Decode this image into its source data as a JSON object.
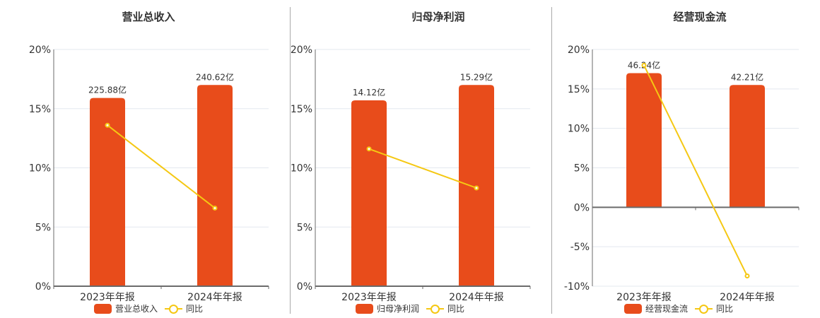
{
  "colors": {
    "bar": "#e84c1b",
    "line": "#f5c813",
    "grid": "#e3e8ef",
    "axis": "#6b6b6b",
    "text": "#333333"
  },
  "chart_data": [
    {
      "type": "bar+line",
      "title": "营业总收入",
      "categories": [
        "2023年年报",
        "2024年年报"
      ],
      "series": [
        {
          "name": "营业总收入",
          "kind": "bar",
          "labels": [
            "225.88亿",
            "240.62亿"
          ],
          "values": [
            225.88,
            240.62
          ],
          "unit": "亿",
          "bar_top_pct": [
            15.9,
            17.0
          ]
        },
        {
          "name": "同比",
          "kind": "line",
          "values": [
            13.6,
            6.6
          ],
          "unit": "%"
        }
      ],
      "yaxis": {
        "ticks": [
          "20%",
          "15%",
          "10%",
          "5%",
          "0%"
        ],
        "ylim": [
          0,
          20
        ]
      },
      "legend": {
        "position": "bottom",
        "items": [
          "营业总收入",
          "同比"
        ]
      },
      "grid": true
    },
    {
      "type": "bar+line",
      "title": "归母净利润",
      "categories": [
        "2023年年报",
        "2024年年报"
      ],
      "series": [
        {
          "name": "归母净利润",
          "kind": "bar",
          "labels": [
            "14.12亿",
            "15.29亿"
          ],
          "values": [
            14.12,
            15.29
          ],
          "unit": "亿",
          "bar_top_pct": [
            15.7,
            17.0
          ]
        },
        {
          "name": "同比",
          "kind": "line",
          "values": [
            11.6,
            8.3
          ],
          "unit": "%"
        }
      ],
      "yaxis": {
        "ticks": [
          "20%",
          "15%",
          "10%",
          "5%",
          "0%"
        ],
        "ylim": [
          0,
          20
        ]
      },
      "legend": {
        "position": "bottom",
        "items": [
          "归母净利润",
          "同比"
        ]
      },
      "grid": true
    },
    {
      "type": "bar+line",
      "title": "经营现金流",
      "categories": [
        "2023年年报",
        "2024年年报"
      ],
      "series": [
        {
          "name": "经营现金流",
          "kind": "bar",
          "labels": [
            "46.24亿",
            "42.21亿"
          ],
          "values": [
            46.24,
            42.21
          ],
          "unit": "亿",
          "bar_top_pct": [
            17.0,
            15.5
          ]
        },
        {
          "name": "同比",
          "kind": "line",
          "values": [
            18.0,
            -8.7
          ],
          "unit": "%"
        }
      ],
      "yaxis": {
        "ticks": [
          "20%",
          "15%",
          "10%",
          "5%",
          "0%",
          "-5%",
          "-10%"
        ],
        "ylim": [
          -10,
          20
        ]
      },
      "legend": {
        "position": "bottom",
        "items": [
          "经营现金流",
          "同比"
        ]
      },
      "grid": true
    }
  ]
}
